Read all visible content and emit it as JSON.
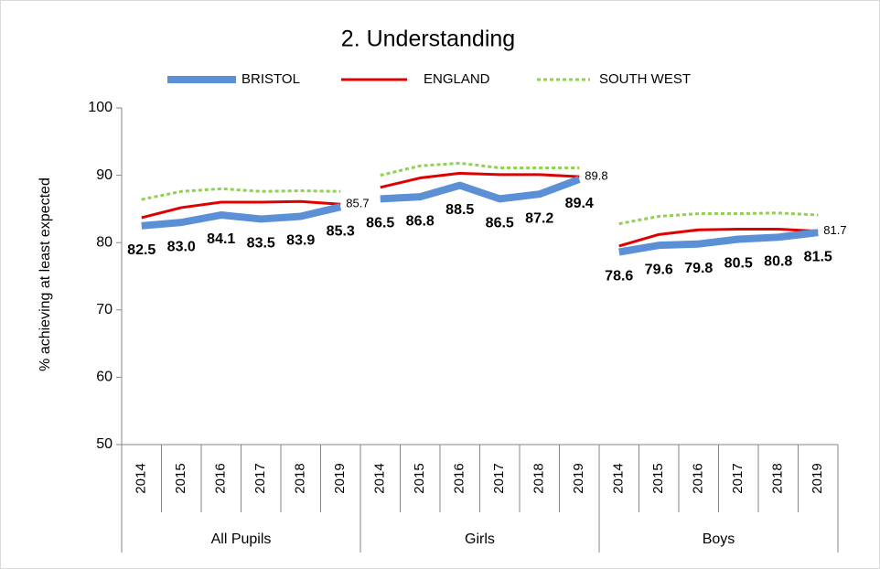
{
  "chart_data": {
    "type": "line",
    "title": "2. Understanding",
    "y_label": "% achieving at least expected",
    "groups": [
      "All Pupils",
      "Girls",
      "Boys"
    ],
    "categories": [
      "2014",
      "2015",
      "2016",
      "2017",
      "2018",
      "2019",
      "2014",
      "2015",
      "2016",
      "2017",
      "2018",
      "2019",
      "2014",
      "2015",
      "2016",
      "2017",
      "2018",
      "2019"
    ],
    "series": [
      {
        "name": "BRISTOL",
        "color": "#5b8fd6",
        "style": "thick",
        "values": [
          82.5,
          83.0,
          84.1,
          83.5,
          83.9,
          85.3,
          86.5,
          86.8,
          88.5,
          86.5,
          87.2,
          89.4,
          78.6,
          79.6,
          79.8,
          80.5,
          80.8,
          81.5
        ],
        "value_labels": [
          "82.5",
          "83.0",
          "84.1",
          "83.5",
          "83.9",
          "85.3",
          "86.5",
          "86.8",
          "88.5",
          "86.5",
          "87.2",
          "89.4",
          "78.6",
          "79.6",
          "79.8",
          "80.5",
          "80.8",
          "81.5"
        ],
        "label_color": "#2e75b6"
      },
      {
        "name": "ENGLAND",
        "color": "#e00000",
        "style": "solid",
        "values": [
          83.7,
          85.2,
          86.0,
          86.0,
          86.1,
          85.7,
          88.2,
          89.6,
          90.3,
          90.1,
          90.1,
          89.8,
          79.5,
          81.2,
          81.9,
          82.0,
          82.0,
          81.7
        ],
        "value_labels": [
          null,
          null,
          null,
          null,
          null,
          "85.7",
          null,
          null,
          null,
          null,
          null,
          "89.8",
          null,
          null,
          null,
          null,
          null,
          "81.7"
        ],
        "label_color": "#e00000"
      },
      {
        "name": "SOUTH WEST",
        "color": "#92d050",
        "style": "dashed",
        "values": [
          86.4,
          87.6,
          88.0,
          87.6,
          87.7,
          87.6,
          90.0,
          91.4,
          91.8,
          91.1,
          91.1,
          91.1,
          82.8,
          83.9,
          84.3,
          84.3,
          84.4,
          84.1
        ]
      }
    ],
    "ylim": [
      50,
      100
    ],
    "yticks": [
      50,
      60,
      70,
      80,
      90,
      100
    ],
    "grid": false,
    "legend": "top"
  }
}
